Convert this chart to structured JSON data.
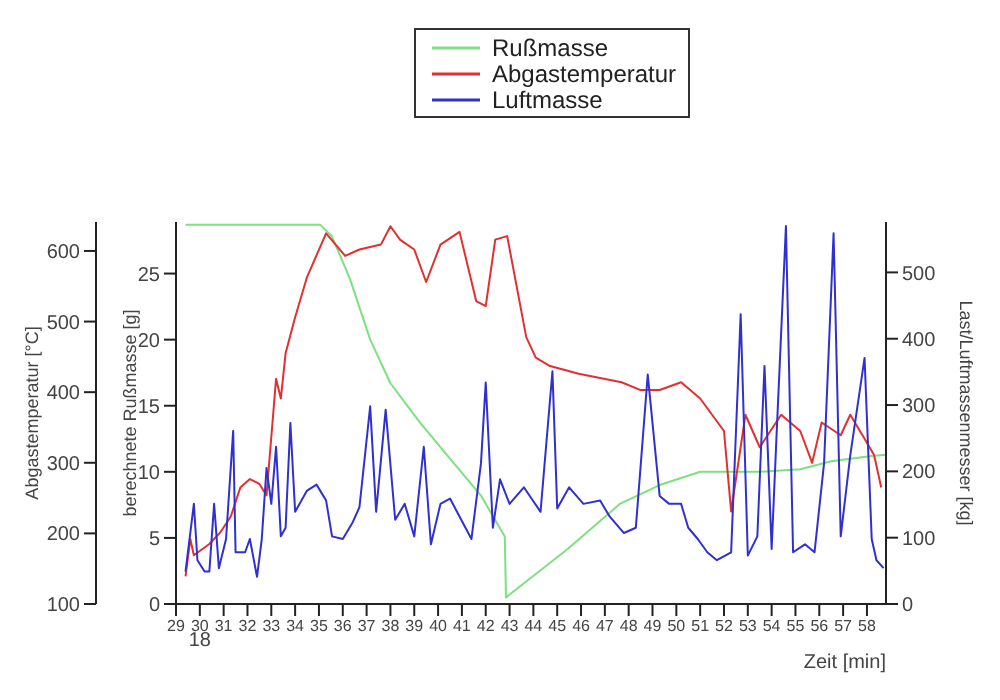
{
  "chart_data": {
    "type": "line",
    "xlabel": "Zeit [min]",
    "ylabel": "Abgastemperatur [°C]",
    "y2label": "berechnete Rußmasse [g]",
    "y3label": "Last/Luftmassenmesser [kg]",
    "xlim": [
      29,
      58.8
    ],
    "xticks": [
      29,
      30,
      31,
      32,
      33,
      34,
      35,
      36,
      37,
      38,
      39,
      40,
      41,
      42,
      43,
      44,
      45,
      46,
      47,
      48,
      49,
      50,
      51,
      52,
      53,
      54,
      55,
      56,
      57,
      58
    ],
    "ylim": [
      100,
      641
    ],
    "yticks": [
      100,
      200,
      300,
      400,
      500,
      600
    ],
    "y2lim": [
      0,
      28.9
    ],
    "y2ticks": [
      0,
      5,
      10,
      15,
      20,
      25
    ],
    "y3lim": [
      0,
      576
    ],
    "y3ticks": [
      0,
      100,
      200,
      300,
      400,
      500
    ],
    "legend": "top",
    "marker": "none",
    "line_style": "solid",
    "annotations": [
      "18"
    ],
    "series": [
      {
        "name": "Rußmasse",
        "color": "#7fe07f",
        "axis": "y2",
        "x": [
          29.4,
          35.05,
          35.55,
          36.3,
          37.15,
          38.0,
          39.25,
          40.5,
          41.8,
          42.8,
          42.85,
          45.4,
          47.65,
          49.3,
          51.0,
          53.5,
          55.2,
          56.5,
          58.2,
          58.8
        ],
        "values": [
          28.7,
          28.7,
          27.8,
          24.6,
          20,
          16.7,
          13.7,
          11,
          8.2,
          5.1,
          0.5,
          4.1,
          7.6,
          9.0,
          10.0,
          10.0,
          10.2,
          10.8,
          11.2,
          11.3
        ]
      },
      {
        "name": "Abgastemperatur",
        "color": "#e03030",
        "axis": "y",
        "x": [
          29.4,
          29.6,
          29.75,
          30.4,
          30.85,
          31.3,
          31.7,
          32.1,
          32.5,
          32.8,
          33.2,
          33.4,
          33.6,
          34.0,
          34.5,
          35.3,
          36.1,
          36.7,
          37.6,
          38.0,
          38.4,
          39.0,
          39.5,
          40.1,
          40.9,
          41.6,
          42.0,
          42.4,
          42.9,
          43.7,
          44.1,
          44.7,
          45.9,
          47.7,
          48.5,
          49.3,
          50.2,
          51.0,
          52.0,
          52.3,
          52.9,
          53.5,
          54.4,
          55.2,
          55.7,
          56.1,
          56.9,
          57.3,
          57.9,
          58.3,
          58.6
        ],
        "values": [
          139,
          192,
          169,
          185,
          201,
          224,
          265,
          277,
          270,
          254,
          419,
          391,
          455,
          506,
          563,
          625,
          593,
          602,
          609,
          635,
          616,
          602,
          556,
          609,
          627,
          529,
          522,
          616,
          621,
          478,
          449,
          437,
          426,
          414,
          403,
          403,
          414,
          391,
          345,
          231,
          368,
          322,
          368,
          345,
          300,
          357,
          339,
          368,
          334,
          311,
          265
        ]
      },
      {
        "name": "Luftmasse",
        "color": "#3030d0",
        "axis": "y3",
        "x": [
          29.4,
          29.75,
          29.9,
          30.2,
          30.4,
          30.6,
          30.8,
          31.1,
          31.4,
          31.5,
          31.9,
          32.1,
          32.4,
          32.6,
          32.8,
          33.0,
          33.2,
          33.4,
          33.6,
          33.8,
          34.0,
          34.5,
          34.9,
          35.3,
          35.55,
          36.0,
          36.4,
          36.7,
          37.15,
          37.4,
          37.8,
          38.2,
          38.6,
          39.0,
          39.4,
          39.7,
          40.1,
          40.5,
          40.9,
          41.4,
          41.8,
          42.0,
          42.3,
          42.6,
          43.0,
          43.6,
          44.3,
          44.8,
          45.0,
          45.5,
          46.1,
          46.8,
          47.2,
          47.8,
          48.3,
          48.8,
          49.3,
          49.7,
          50.2,
          50.5,
          50.9,
          51.3,
          51.7,
          52.3,
          52.7,
          53.0,
          53.4,
          53.7,
          54.0,
          54.2,
          54.6,
          54.9,
          55.4,
          55.8,
          56.2,
          56.6,
          56.9,
          57.3,
          57.9,
          58.2,
          58.4,
          58.7
        ],
        "values": [
          49,
          151,
          66,
          49,
          49,
          151,
          54,
          98,
          261,
          78,
          78,
          98,
          41,
          98,
          205,
          151,
          237,
          102,
          115,
          273,
          139,
          171,
          180,
          156,
          102,
          98,
          122,
          146,
          298,
          139,
          293,
          127,
          151,
          102,
          237,
          90,
          151,
          159,
          132,
          98,
          212,
          334,
          115,
          188,
          151,
          176,
          139,
          351,
          144,
          176,
          151,
          156,
          132,
          107,
          115,
          346,
          163,
          151,
          151,
          115,
          98,
          78,
          66,
          78,
          437,
          73,
          102,
          359,
          83,
          249,
          570,
          78,
          90,
          78,
          212,
          559,
          102,
          224,
          371,
          98,
          66,
          54
        ]
      }
    ]
  }
}
